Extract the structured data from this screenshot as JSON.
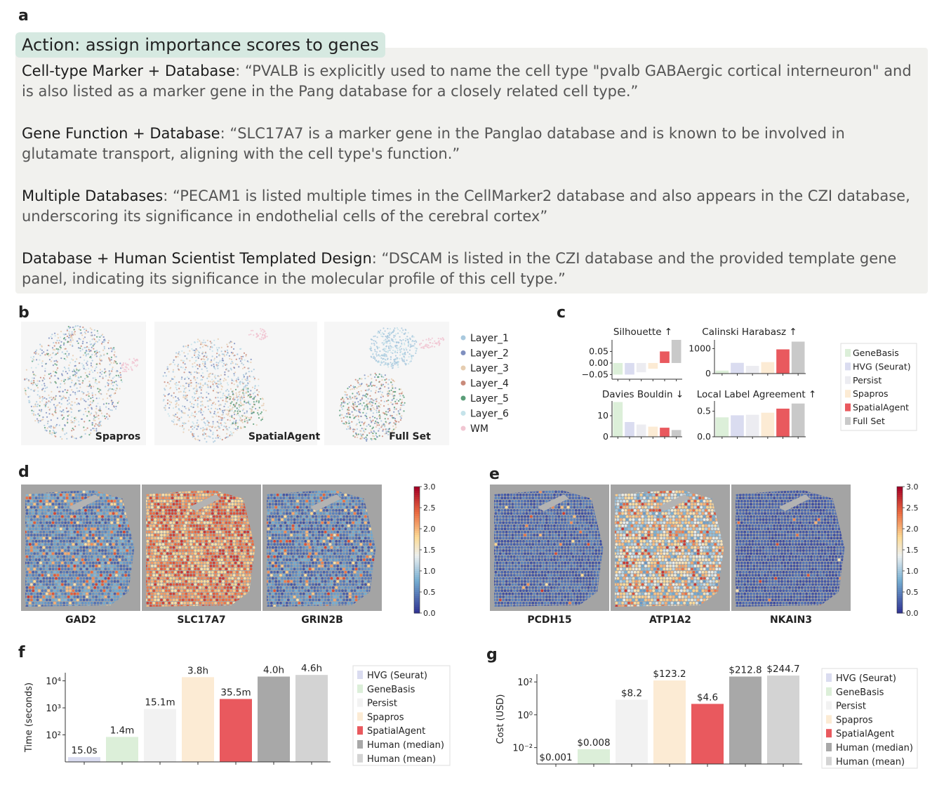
{
  "panel_labels": {
    "a": "a",
    "b": "b",
    "c": "c",
    "d": "d",
    "e": "e",
    "f": "f",
    "g": "g"
  },
  "panel_a": {
    "title": "Action: assign importance scores to genes",
    "items": [
      {
        "heading": "Cell-type Marker + Database",
        "sep": ": ",
        "quote": "“PVALB is explicitly used to name the cell type \"pvalb GABAergic cortical interneuron\" and is also listed as a marker gene in the Pang database for a closely related cell type.”"
      },
      {
        "heading": "Gene Function + Database",
        "sep": ": ",
        "quote": "“SLC17A7 is a marker gene in the Panglao database and is known to be involved in glutamate transport, aligning with the cell type's function.”"
      },
      {
        "heading": "Multiple Databases",
        "sep": ": ",
        "quote": "“PECAM1 is listed multiple times in the CellMarker2 database and also appears in the CZI database, underscoring its significance in endothelial cells of the cerebral cortex”"
      },
      {
        "heading": "Database + Human Scientist Templated Design",
        "sep": ": ",
        "quote": "“DSCAM is listed in the CZI database and the provided template gene panel, indicating its significance in the molecular profile of this cell type.”"
      }
    ]
  },
  "panel_b": {
    "embeddings": [
      "Spapros",
      "SpatialAgent",
      "Full Set"
    ],
    "legend": [
      {
        "label": "Layer_1",
        "color": "#a9c9de"
      },
      {
        "label": "Layer_2",
        "color": "#7f8fbf"
      },
      {
        "label": "Layer_3",
        "color": "#e6cdb0"
      },
      {
        "label": "Layer_4",
        "color": "#c98a7a"
      },
      {
        "label": "Layer_5",
        "color": "#5a9d78"
      },
      {
        "label": "Layer_6",
        "color": "#c5e3ea"
      },
      {
        "label": "WM",
        "color": "#f1c6d2"
      }
    ]
  },
  "panel_c": {
    "methods": [
      {
        "label": "GeneBasis",
        "color": "#dcefd9"
      },
      {
        "label": "HVG (Seurat)",
        "color": "#dadcf0"
      },
      {
        "label": "Persist",
        "color": "#ececf1"
      },
      {
        "label": "Spapros",
        "color": "#fcebd4"
      },
      {
        "label": "SpatialAgent",
        "color": "#e9595e"
      },
      {
        "label": "Full Set",
        "color": "#c9c9c9"
      }
    ],
    "charts": [
      {
        "title": "Silhouette ↑",
        "values": [
          -0.05,
          -0.05,
          -0.04,
          -0.025,
          0.05,
          0.1
        ],
        "ylim": [
          -0.07,
          0.1
        ],
        "ticks": [
          0.05,
          0.0,
          -0.05
        ],
        "tick_labels": [
          "0.05",
          "0.00",
          "−0.05"
        ]
      },
      {
        "title": "Calinski Harabasz ↑",
        "values": [
          120,
          430,
          310,
          460,
          970,
          1280
        ],
        "ylim": [
          0,
          1350
        ],
        "ticks": [
          0,
          1000
        ],
        "tick_labels": [
          "0",
          "1000"
        ]
      },
      {
        "title": "Davies Bouldin ↓",
        "values": [
          16.5,
          7.0,
          5.8,
          4.8,
          4.3,
          3.2
        ],
        "ylim": [
          0,
          17
        ],
        "ticks": [
          0,
          10
        ],
        "tick_labels": [
          "0",
          "10"
        ]
      },
      {
        "title": "Local Label Agreement ↑",
        "values": [
          0.38,
          0.42,
          0.43,
          0.47,
          0.55,
          0.65
        ],
        "ylim": [
          0,
          0.7
        ],
        "ticks": [
          0.0,
          0.5
        ],
        "tick_labels": [
          "0.0",
          "0.5"
        ]
      }
    ]
  },
  "panel_d": {
    "genes": [
      "GAD2",
      "SLC17A7",
      "GRIN2B"
    ],
    "colorbar": [
      "3.0",
      "2.5",
      "2.0",
      "1.5",
      "1.0",
      "0.5",
      "0.0"
    ]
  },
  "panel_e": {
    "genes": [
      "PCDH15",
      "ATP1A2",
      "NKAIN3"
    ],
    "colorbar": [
      "3.0",
      "2.5",
      "2.0",
      "1.5",
      "1.0",
      "0.5",
      "0.0"
    ]
  },
  "chart_data": [
    {
      "type": "bar",
      "panel": "f",
      "ylabel": "Time (seconds)",
      "yscale": "log",
      "ylim": [
        10,
        20000
      ],
      "ytick_labels": [
        "10²",
        "10³",
        "10⁴"
      ],
      "categories": [
        "HVG (Seurat)",
        "GeneBasis",
        "Persist",
        "Spapros",
        "SpatialAgent",
        "Human (median)",
        "Human (mean)"
      ],
      "values": [
        15,
        84,
        906,
        13680,
        2130,
        14400,
        16560
      ],
      "data_labels": [
        "15.0s",
        "1.4m",
        "15.1m",
        "3.8h",
        "35.5m",
        "4.0h",
        "4.6h"
      ],
      "colors": [
        "#dadcf0",
        "#dcefd9",
        "#f2f2f2",
        "#fcebd4",
        "#e9595e",
        "#a8a8a8",
        "#d3d3d3"
      ]
    },
    {
      "type": "bar",
      "panel": "g",
      "ylabel": "Cost (USD)",
      "yscale": "log",
      "ylim": [
        0.001,
        300
      ],
      "ytick_labels": [
        "10⁻²",
        "10⁰",
        "10²"
      ],
      "categories": [
        "HVG (Seurat)",
        "GeneBasis",
        "Persist",
        "Spapros",
        "SpatialAgent",
        "Human (median)",
        "Human (mean)"
      ],
      "values": [
        0.001,
        0.008,
        8.2,
        123.2,
        4.6,
        212.8,
        244.7
      ],
      "data_labels": [
        "$0.001",
        "$0.008",
        "$8.2",
        "$123.2",
        "$4.6",
        "$212.8",
        "$244.7"
      ],
      "colors": [
        "#dadcf0",
        "#dcefd9",
        "#f2f2f2",
        "#fcebd4",
        "#e9595e",
        "#a8a8a8",
        "#d3d3d3"
      ]
    }
  ]
}
